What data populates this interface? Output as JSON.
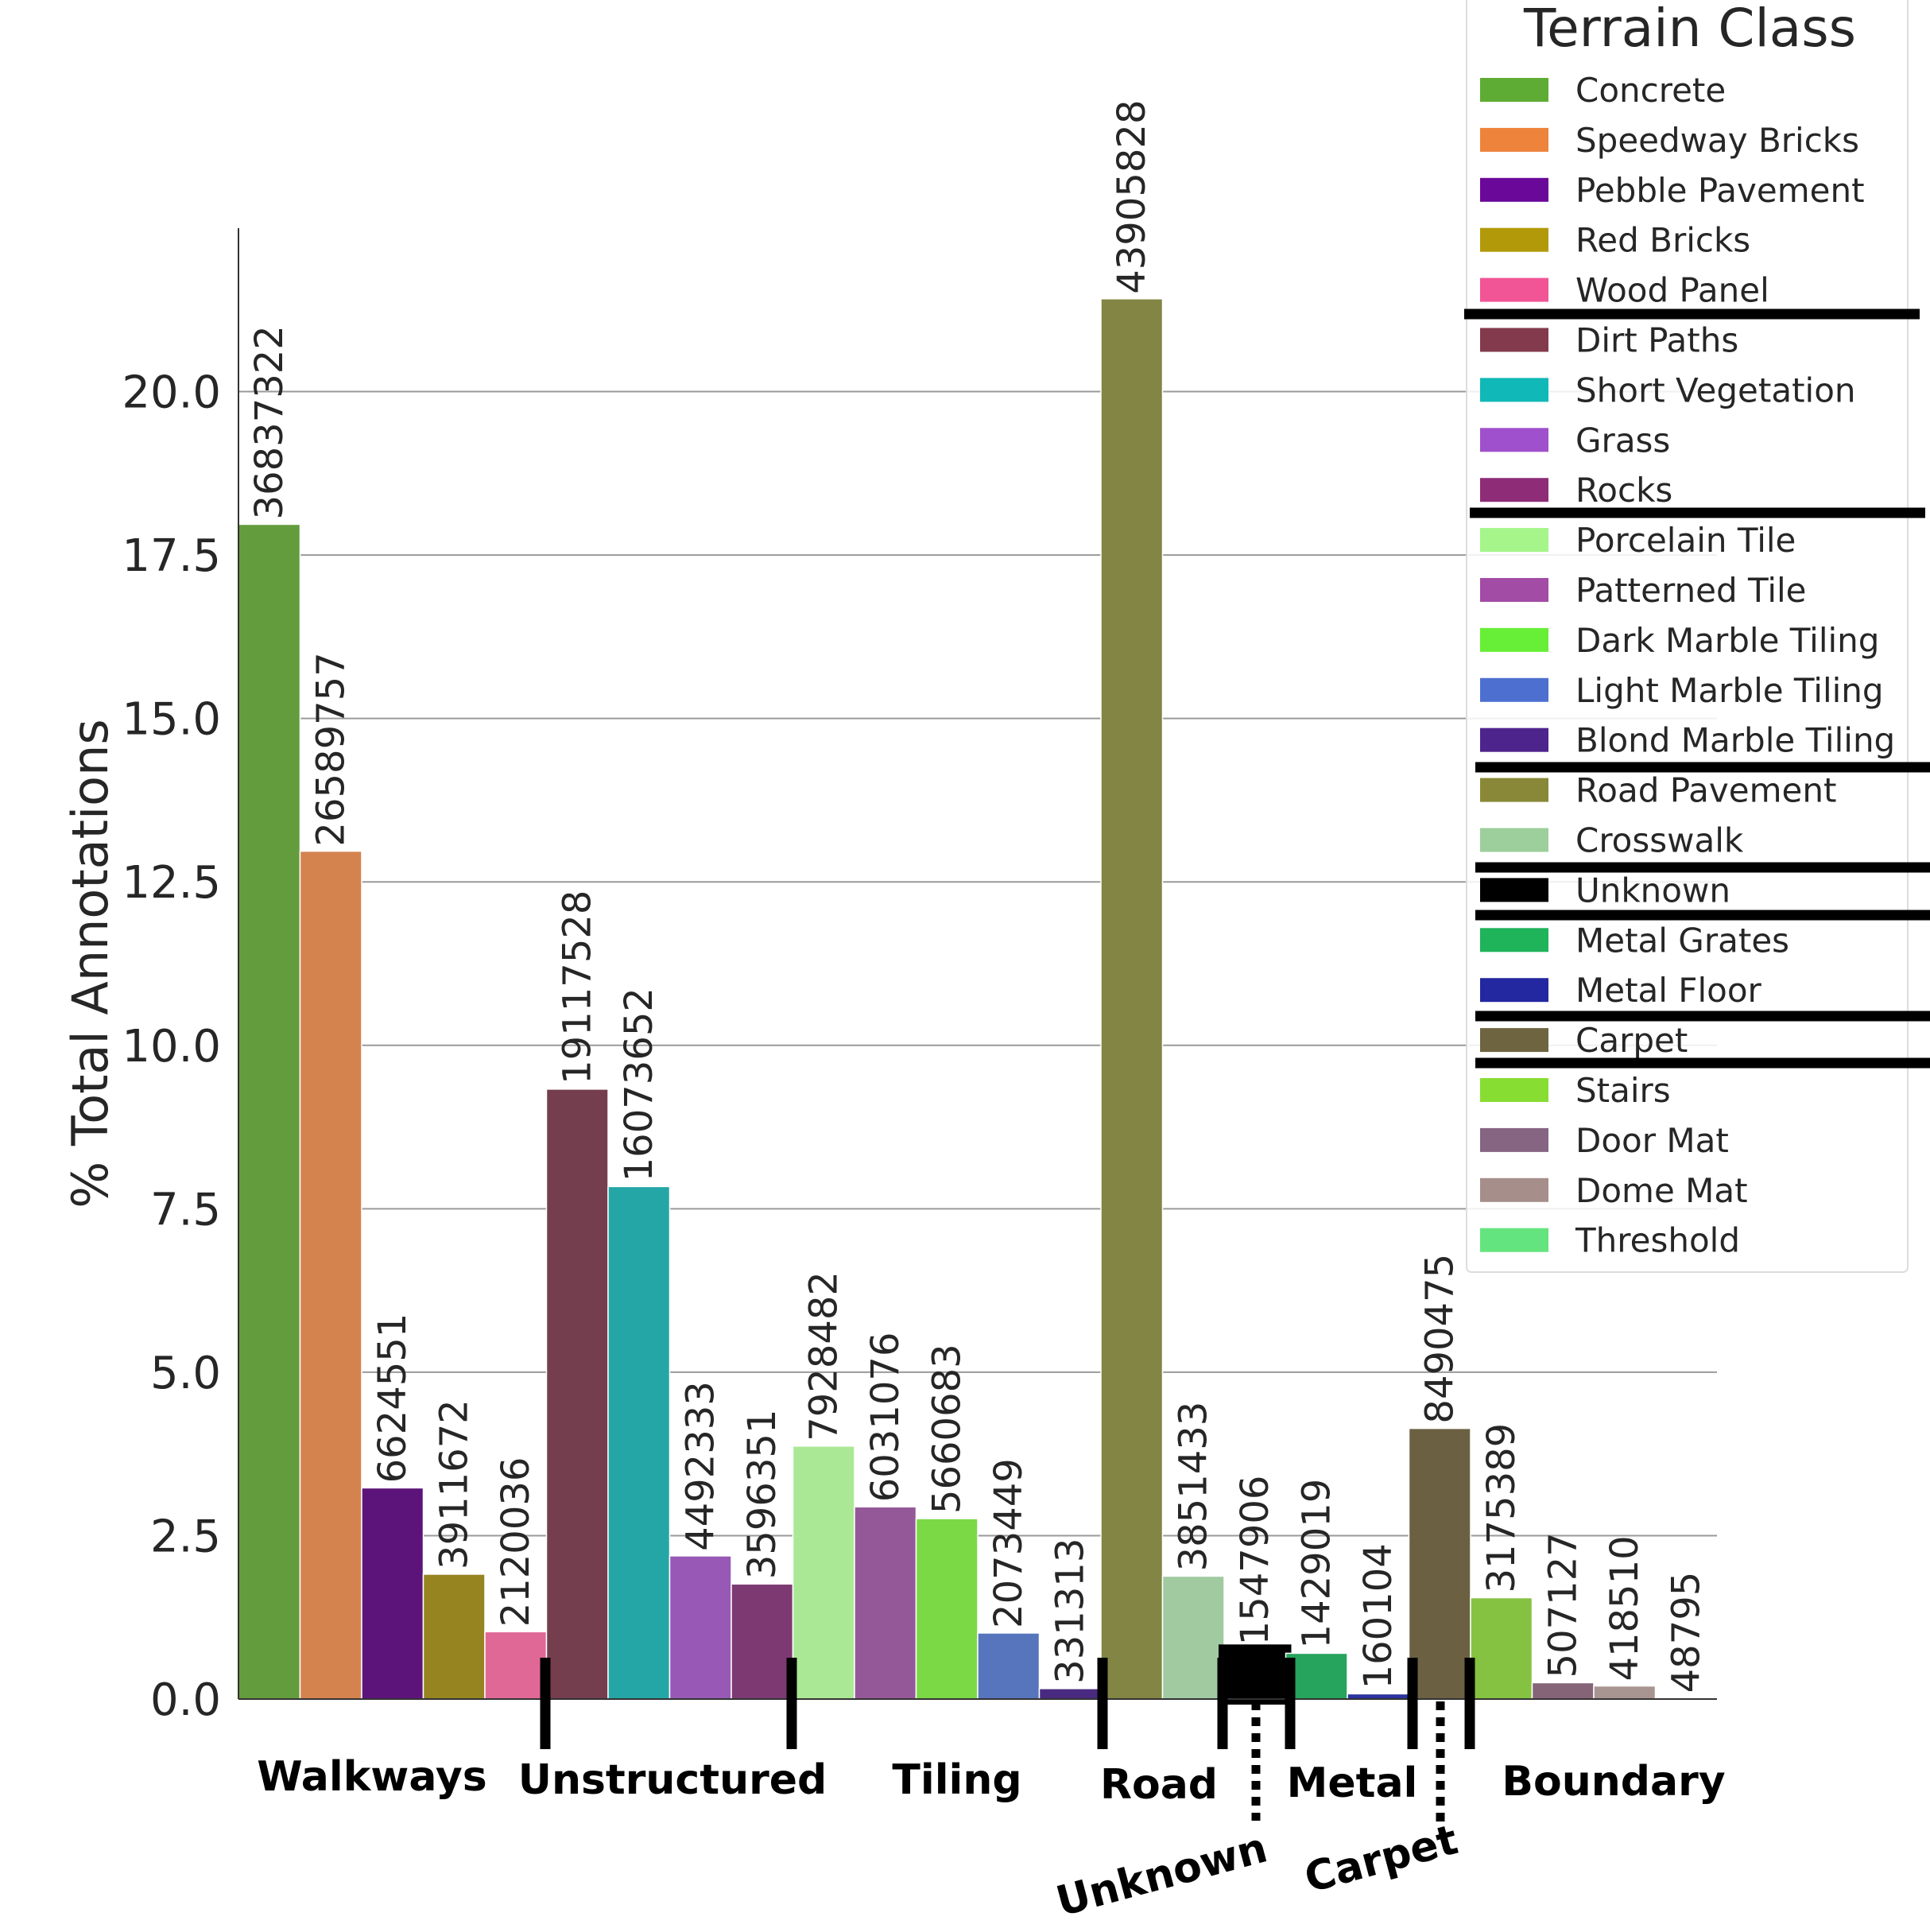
{
  "chart_data": {
    "type": "bar",
    "ylabel": "% Total Annotations",
    "xlabel": "",
    "ylim": [
      0,
      22.5
    ],
    "yticks": [
      0.0,
      2.5,
      5.0,
      7.5,
      10.0,
      12.5,
      15.0,
      17.5,
      20.0
    ],
    "ytick_labels": [
      "0.0",
      "2.5",
      "5.0",
      "7.5",
      "10.0",
      "12.5",
      "15.0",
      "17.5",
      "20.0"
    ],
    "grid": "horizontal",
    "legend_title": "Terrain Class",
    "legend_position": "top-right",
    "series": [
      {
        "name": "Concrete",
        "value": 17.97,
        "count": "36837322",
        "color": "#639c3d"
      },
      {
        "name": "Speedway Bricks",
        "value": 12.97,
        "count": "26589757",
        "color": "#d4834f"
      },
      {
        "name": "Pebble Pavement",
        "value": 3.23,
        "count": "6624551",
        "color": "#5d147a"
      },
      {
        "name": "Red Bricks",
        "value": 1.91,
        "count": "3911672",
        "color": "#968420"
      },
      {
        "name": "Wood Panel",
        "value": 1.03,
        "count": "2120036",
        "color": "#e06896"
      },
      {
        "name": "Dirt Paths",
        "value": 9.33,
        "count": "19117528",
        "color": "#753e4f"
      },
      {
        "name": "Short Vegetation",
        "value": 7.84,
        "count": "16073652",
        "color": "#25a6a6"
      },
      {
        "name": "Grass",
        "value": 2.19,
        "count": "4492333",
        "color": "#9759b5"
      },
      {
        "name": "Rocks",
        "value": 1.76,
        "count": "3596351",
        "color": "#7d3a72"
      },
      {
        "name": "Porcelain Tile",
        "value": 3.87,
        "count": "7928482",
        "color": "#abe896"
      },
      {
        "name": "Patterned Tile",
        "value": 2.94,
        "count": "6031076",
        "color": "#945899"
      },
      {
        "name": "Dark Marble Tiling",
        "value": 2.76,
        "count": "5660683",
        "color": "#7ad945"
      },
      {
        "name": "Light Marble Tiling",
        "value": 1.01,
        "count": "2073449",
        "color": "#5675bd"
      },
      {
        "name": "Blond Marble Tiling",
        "value": 0.16,
        "count": "331313",
        "color": "#492a80"
      },
      {
        "name": "Road Pavement",
        "value": 21.42,
        "count": "43905828",
        "color": "#838544"
      },
      {
        "name": "Crosswalk",
        "value": 1.88,
        "count": "3851433",
        "color": "#a1caa1"
      },
      {
        "name": "Unknown",
        "value": 0.75,
        "count": "1547906",
        "color": "#000000"
      },
      {
        "name": "Metal Grates",
        "value": 0.7,
        "count": "1429019",
        "color": "#26a35c"
      },
      {
        "name": "Metal Floor",
        "value": 0.08,
        "count": "160104",
        "color": "#2b339e"
      },
      {
        "name": "Carpet",
        "value": 4.14,
        "count": "8490475",
        "color": "#6b6042"
      },
      {
        "name": "Stairs",
        "value": 1.55,
        "count": "3175389",
        "color": "#85c241"
      },
      {
        "name": "Door Mat",
        "value": 0.25,
        "count": "507127",
        "color": "#856478"
      },
      {
        "name": "Dome Mat",
        "value": 0.2,
        "count": "418510",
        "color": "#a89490"
      },
      {
        "name": "Threshold",
        "value": 0.02,
        "count": "48795",
        "color": "#5fe07c"
      }
    ],
    "legend_colors": [
      "#5fac34",
      "#ee833b",
      "#6a0899",
      "#b2990a",
      "#f15596",
      "#833a4c",
      "#11b8b8",
      "#9f50cc",
      "#8e2c78",
      "#a5f58b",
      "#a24ca6",
      "#67ee37",
      "#4d70d0",
      "#4d248c",
      "#888838",
      "#9ccf9c",
      "#000000",
      "#1fb35a",
      "#2328a0",
      "#6e6440",
      "#88dd33",
      "#856582",
      "#a68e8a",
      "#64e47e"
    ],
    "groups": [
      {
        "label": "Walkways",
        "rotated": false
      },
      {
        "label": "Unstructured",
        "rotated": false
      },
      {
        "label": "Tiling",
        "rotated": false
      },
      {
        "label": "Road",
        "rotated": false
      },
      {
        "label": "Unknown",
        "rotated": true
      },
      {
        "label": "Metal",
        "rotated": false
      },
      {
        "label": "Carpet",
        "rotated": true
      },
      {
        "label": "Boundary",
        "rotated": false
      }
    ]
  }
}
